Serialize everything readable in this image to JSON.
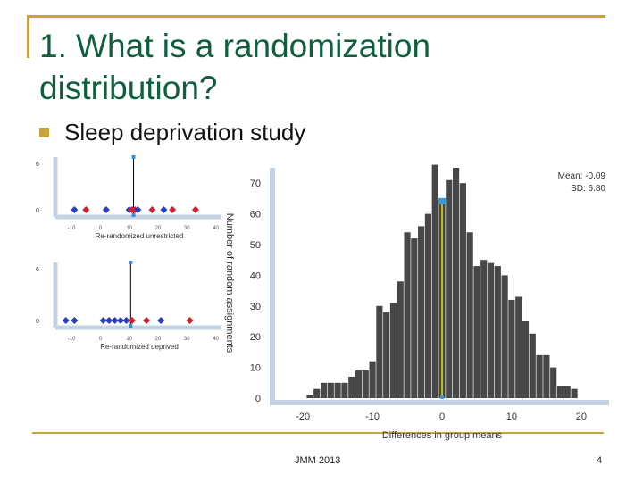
{
  "slide": {
    "title": "1. What is a randomization distribution?",
    "bullet": "Sleep deprivation study",
    "footer": "JMM 2013",
    "page_number": "4"
  },
  "chart_data": [
    {
      "type": "dotplot",
      "xlabel": "Re-randomized unrestricted",
      "ytick_labels": [
        "6",
        "0"
      ],
      "xtick_labels": [
        "-10",
        "0",
        "10",
        "20",
        "30",
        "40"
      ],
      "xlim": [
        -15,
        42
      ],
      "mean_line_x": 11.5,
      "points": [
        {
          "x": -9,
          "color": "#2a3fbf"
        },
        {
          "x": -5,
          "color": "#d21f2f"
        },
        {
          "x": 2,
          "color": "#2a3fbf"
        },
        {
          "x": 10,
          "color": "#2a3fbf"
        },
        {
          "x": 11,
          "color": "#d21f2f"
        },
        {
          "x": 12,
          "color": "#d21f2f"
        },
        {
          "x": 13,
          "color": "#2a3fbf"
        },
        {
          "x": 18,
          "color": "#d21f2f"
        },
        {
          "x": 22,
          "color": "#2a3fbf"
        },
        {
          "x": 25,
          "color": "#d21f2f"
        },
        {
          "x": 33,
          "color": "#d21f2f"
        }
      ]
    },
    {
      "type": "dotplot",
      "xlabel": "Re-randomized deprived",
      "ytick_labels": [
        "6",
        "0"
      ],
      "xtick_labels": [
        "-10",
        "0",
        "10",
        "20",
        "30",
        "40"
      ],
      "xlim": [
        -15,
        42
      ],
      "mean_line_x": 10.5,
      "points": [
        {
          "x": -12,
          "color": "#2a3fbf"
        },
        {
          "x": -9,
          "color": "#2a3fbf"
        },
        {
          "x": 1,
          "color": "#2a3fbf"
        },
        {
          "x": 3,
          "color": "#2a3fbf"
        },
        {
          "x": 5,
          "color": "#2a3fbf"
        },
        {
          "x": 7,
          "color": "#2a3fbf"
        },
        {
          "x": 9,
          "color": "#2a3fbf"
        },
        {
          "x": 11,
          "color": "#d21f2f"
        },
        {
          "x": 16,
          "color": "#d21f2f"
        },
        {
          "x": 21,
          "color": "#2a3fbf"
        },
        {
          "x": 31,
          "color": "#d21f2f"
        }
      ]
    },
    {
      "type": "bar",
      "xlabel": "Differences in group means",
      "ylabel": "Number of random assignments",
      "stats": [
        "Mean: -0.09",
        "SD: 6.80"
      ],
      "ylim": [
        0,
        75
      ],
      "xlim": [
        -24,
        24
      ],
      "yticks": [
        0,
        10,
        20,
        30,
        40,
        50,
        60,
        70
      ],
      "xticks": [
        -20,
        -10,
        0,
        10,
        20
      ],
      "highlight_x": 0,
      "x": [
        -19,
        -18,
        -17,
        -16,
        -15,
        -14,
        -13,
        -12,
        -11,
        -10,
        -9,
        -8,
        -7,
        -6,
        -5,
        -4,
        -3,
        -2,
        -1,
        0,
        1,
        2,
        3,
        4,
        5,
        6,
        7,
        8,
        9,
        10,
        11,
        12,
        13,
        14,
        15,
        16,
        17,
        18,
        19
      ],
      "values": [
        1,
        3,
        5,
        5,
        5,
        5,
        7,
        9,
        9,
        12,
        30,
        28,
        31,
        38,
        54,
        52,
        56,
        60,
        76,
        64,
        71,
        75,
        70,
        54,
        43,
        45,
        44,
        43,
        40,
        32,
        33,
        25,
        21,
        14,
        14,
        10,
        4,
        4,
        3
      ],
      "bar_color": "#474747",
      "highlight_color": "#3a9ad9",
      "mean_line_color": "#e8e000"
    }
  ]
}
